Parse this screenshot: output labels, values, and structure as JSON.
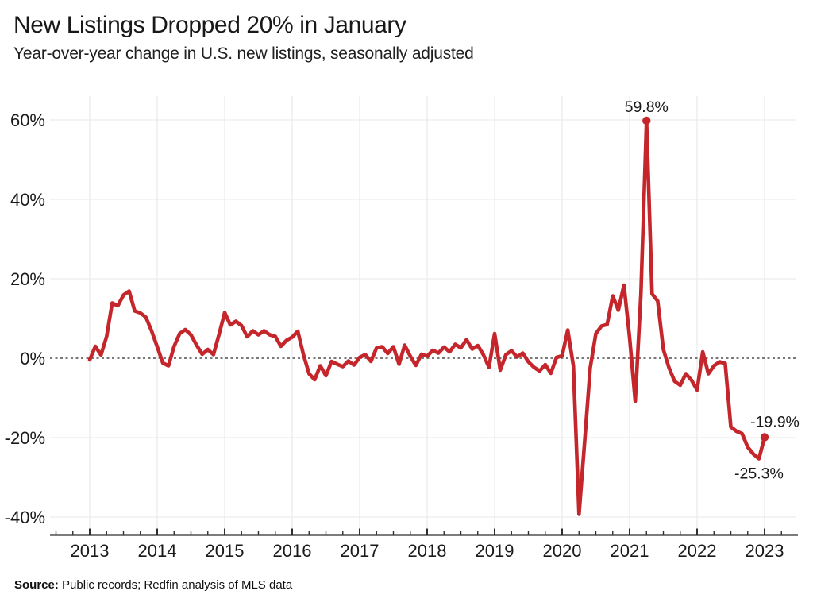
{
  "header": {
    "title": "New Listings Dropped 20% in January",
    "subtitle": "Year-over-year change in U.S. new listings, seasonally adjusted"
  },
  "footer": {
    "source_label": "Source:",
    "source_text": "Public records; Redfin analysis of MLS data"
  },
  "chart_data": {
    "type": "line",
    "title": "New Listings Dropped 20% in January",
    "subtitle": "Year-over-year change in U.S. new listings, seasonally adjusted",
    "x_tick_labels": [
      "2013",
      "2014",
      "2015",
      "2016",
      "2017",
      "2018",
      "2019",
      "2020",
      "2021",
      "2022",
      "2023"
    ],
    "y_tick_values": [
      60,
      40,
      20,
      0,
      -20,
      -40
    ],
    "y_tick_labels": [
      "60%",
      "40%",
      "20%",
      "0%",
      "-20%",
      "-40%"
    ],
    "ylim": [
      -42,
      64
    ],
    "grid": true,
    "zero_line_style": "dashed",
    "legend_position": "none",
    "line_color": "#c4262b",
    "text_color": "#1a1a1a",
    "grid_color": "#ededed",
    "axis_color": "#2e2e2e",
    "series": [
      {
        "name": "Year-over-year change in U.S. new listings",
        "frequency": "monthly",
        "unit": "percent",
        "start_month": "2013-01",
        "end_month": "2023-01",
        "values": [
          -0.4,
          3.0,
          0.8,
          5.5,
          13.9,
          13.2,
          15.9,
          16.9,
          11.9,
          11.4,
          10.3,
          6.9,
          2.9,
          -1.2,
          -1.9,
          3.0,
          6.2,
          7.2,
          5.9,
          3.3,
          1.0,
          2.2,
          0.9,
          6.0,
          11.5,
          8.4,
          9.3,
          8.2,
          5.4,
          6.9,
          5.9,
          6.9,
          5.9,
          5.5,
          3.0,
          4.5,
          5.3,
          6.8,
          0.9,
          -3.9,
          -5.4,
          -1.9,
          -4.4,
          -0.8,
          -1.5,
          -2.1,
          -0.7,
          -1.7,
          0.2,
          0.9,
          -0.8,
          2.6,
          2.9,
          1.2,
          2.9,
          -1.5,
          3.3,
          0.5,
          -1.8,
          1.0,
          0.5,
          2.0,
          1.3,
          2.8,
          1.6,
          3.5,
          2.6,
          4.7,
          2.3,
          3.2,
          0.9,
          -2.3,
          6.2,
          -3.0,
          0.9,
          1.9,
          0.3,
          1.3,
          -0.9,
          -2.3,
          -3.2,
          -1.6,
          -3.8,
          0.2,
          0.6,
          7.1,
          -1.9,
          -39.3,
          -21.2,
          -2.4,
          6.2,
          8.1,
          8.5,
          15.7,
          12.1,
          18.4,
          5.2,
          -10.8,
          16.0,
          59.8,
          16.2,
          14.4,
          2.2,
          -2.4,
          -5.8,
          -6.8,
          -3.9,
          -5.5,
          -8.0,
          1.6,
          -3.9,
          -1.9,
          -0.9,
          -1.3,
          -17.3,
          -18.4,
          -19.0,
          -22.4,
          -24.1,
          -25.3,
          -19.9
        ]
      }
    ],
    "annotations": [
      {
        "label": "59.8%",
        "month": "2021-04",
        "value": 59.8,
        "placement": "above",
        "dot": true
      },
      {
        "label": "-25.3%",
        "month": "2022-12",
        "value": -25.3,
        "placement": "below",
        "dot": false
      },
      {
        "label": "-19.9%",
        "month": "2023-01",
        "value": -19.9,
        "placement": "above-right",
        "dot": true
      }
    ]
  }
}
